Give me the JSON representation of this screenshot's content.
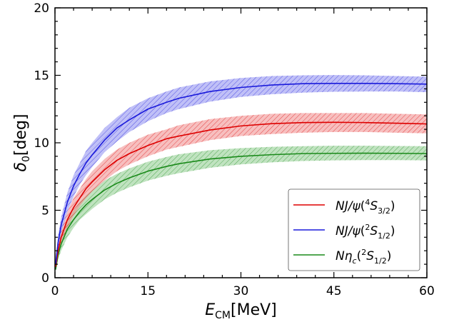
{
  "chart_data": {
    "type": "line",
    "xlabel": {
      "main": "E",
      "sub": "CM",
      "unit": "[MeV]"
    },
    "ylabel": {
      "main": "δ",
      "sub": "0",
      "unit": "[deg]"
    },
    "xlim": [
      0,
      60
    ],
    "ylim": [
      0,
      20
    ],
    "xticks": [
      0,
      15,
      30,
      45,
      60
    ],
    "yticks": [
      0,
      5,
      10,
      15,
      20
    ],
    "grid": false,
    "legend_position": "bottom-right",
    "x": [
      0.1,
      0.5,
      1,
      2,
      3,
      4,
      5,
      6,
      8,
      10,
      12,
      15,
      18,
      20,
      25,
      30,
      35,
      40,
      45,
      50,
      55,
      60
    ],
    "series": [
      {
        "name": "NJ/ψ(4S3/2)",
        "legend": {
          "pre": "NJ/",
          "sym": "ψ",
          "open": "(",
          "sup": "4",
          "letter": "S",
          "sub": "3/2",
          "close": ")"
        },
        "color": "#dd0000",
        "fill": "#f08a8a",
        "values": [
          0.8,
          2.0,
          3.0,
          4.3,
          5.2,
          5.9,
          6.6,
          7.1,
          8.0,
          8.7,
          9.2,
          9.8,
          10.3,
          10.5,
          10.95,
          11.25,
          11.42,
          11.5,
          11.52,
          11.5,
          11.45,
          11.4
        ],
        "lower": [
          0.6,
          1.6,
          2.5,
          3.7,
          4.6,
          5.3,
          5.9,
          6.4,
          7.2,
          7.9,
          8.4,
          9.0,
          9.5,
          9.7,
          10.2,
          10.5,
          10.65,
          10.75,
          10.8,
          10.8,
          10.75,
          10.7
        ],
        "upper": [
          1.0,
          2.4,
          3.5,
          4.9,
          5.9,
          6.6,
          7.3,
          7.9,
          8.8,
          9.5,
          10.0,
          10.6,
          11.0,
          11.3,
          11.75,
          12.0,
          12.15,
          12.2,
          12.2,
          12.2,
          12.15,
          12.1
        ]
      },
      {
        "name": "NJ/ψ(2S1/2)",
        "legend": {
          "pre": "NJ/",
          "sym": "ψ",
          "open": "(",
          "sup": "2",
          "letter": "S",
          "sub": "1/2",
          "close": ")"
        },
        "color": "#1a1adb",
        "fill": "#8c8cf0",
        "values": [
          1.0,
          2.6,
          3.9,
          5.6,
          6.8,
          7.7,
          8.5,
          9.1,
          10.2,
          11.1,
          11.7,
          12.5,
          13.0,
          13.3,
          13.8,
          14.1,
          14.28,
          14.38,
          14.4,
          14.4,
          14.38,
          14.35
        ],
        "lower": [
          0.8,
          2.1,
          3.3,
          4.9,
          6.0,
          6.9,
          7.6,
          8.2,
          9.3,
          10.1,
          10.8,
          11.6,
          12.2,
          12.5,
          13.05,
          13.4,
          13.6,
          13.72,
          13.78,
          13.8,
          13.8,
          13.75
        ],
        "upper": [
          1.2,
          3.1,
          4.5,
          6.3,
          7.6,
          8.5,
          9.4,
          10.0,
          11.1,
          11.9,
          12.6,
          13.3,
          13.8,
          14.1,
          14.55,
          14.8,
          14.95,
          15.0,
          15.02,
          15.0,
          14.95,
          14.9
        ]
      },
      {
        "name": "Nηc(2S1/2)",
        "legend": {
          "pre": "N",
          "sym": "η",
          "symsub": "c",
          "open": "(",
          "sup": "2",
          "letter": "S",
          "sub": "1/2",
          "close": ")"
        },
        "color": "#1a8a1a",
        "fill": "#8ccc8c",
        "values": [
          0.6,
          1.7,
          2.5,
          3.6,
          4.3,
          4.9,
          5.4,
          5.8,
          6.5,
          7.0,
          7.4,
          7.9,
          8.25,
          8.45,
          8.8,
          9.0,
          9.12,
          9.2,
          9.22,
          9.23,
          9.22,
          9.2
        ],
        "lower": [
          0.45,
          1.35,
          2.0,
          3.0,
          3.7,
          4.3,
          4.7,
          5.1,
          5.8,
          6.3,
          6.7,
          7.2,
          7.55,
          7.75,
          8.15,
          8.4,
          8.55,
          8.65,
          8.7,
          8.72,
          8.72,
          8.7
        ],
        "upper": [
          0.75,
          2.05,
          3.0,
          4.2,
          5.0,
          5.6,
          6.1,
          6.5,
          7.2,
          7.7,
          8.1,
          8.6,
          8.95,
          9.15,
          9.45,
          9.6,
          9.7,
          9.75,
          9.78,
          9.78,
          9.76,
          9.75
        ]
      }
    ]
  }
}
